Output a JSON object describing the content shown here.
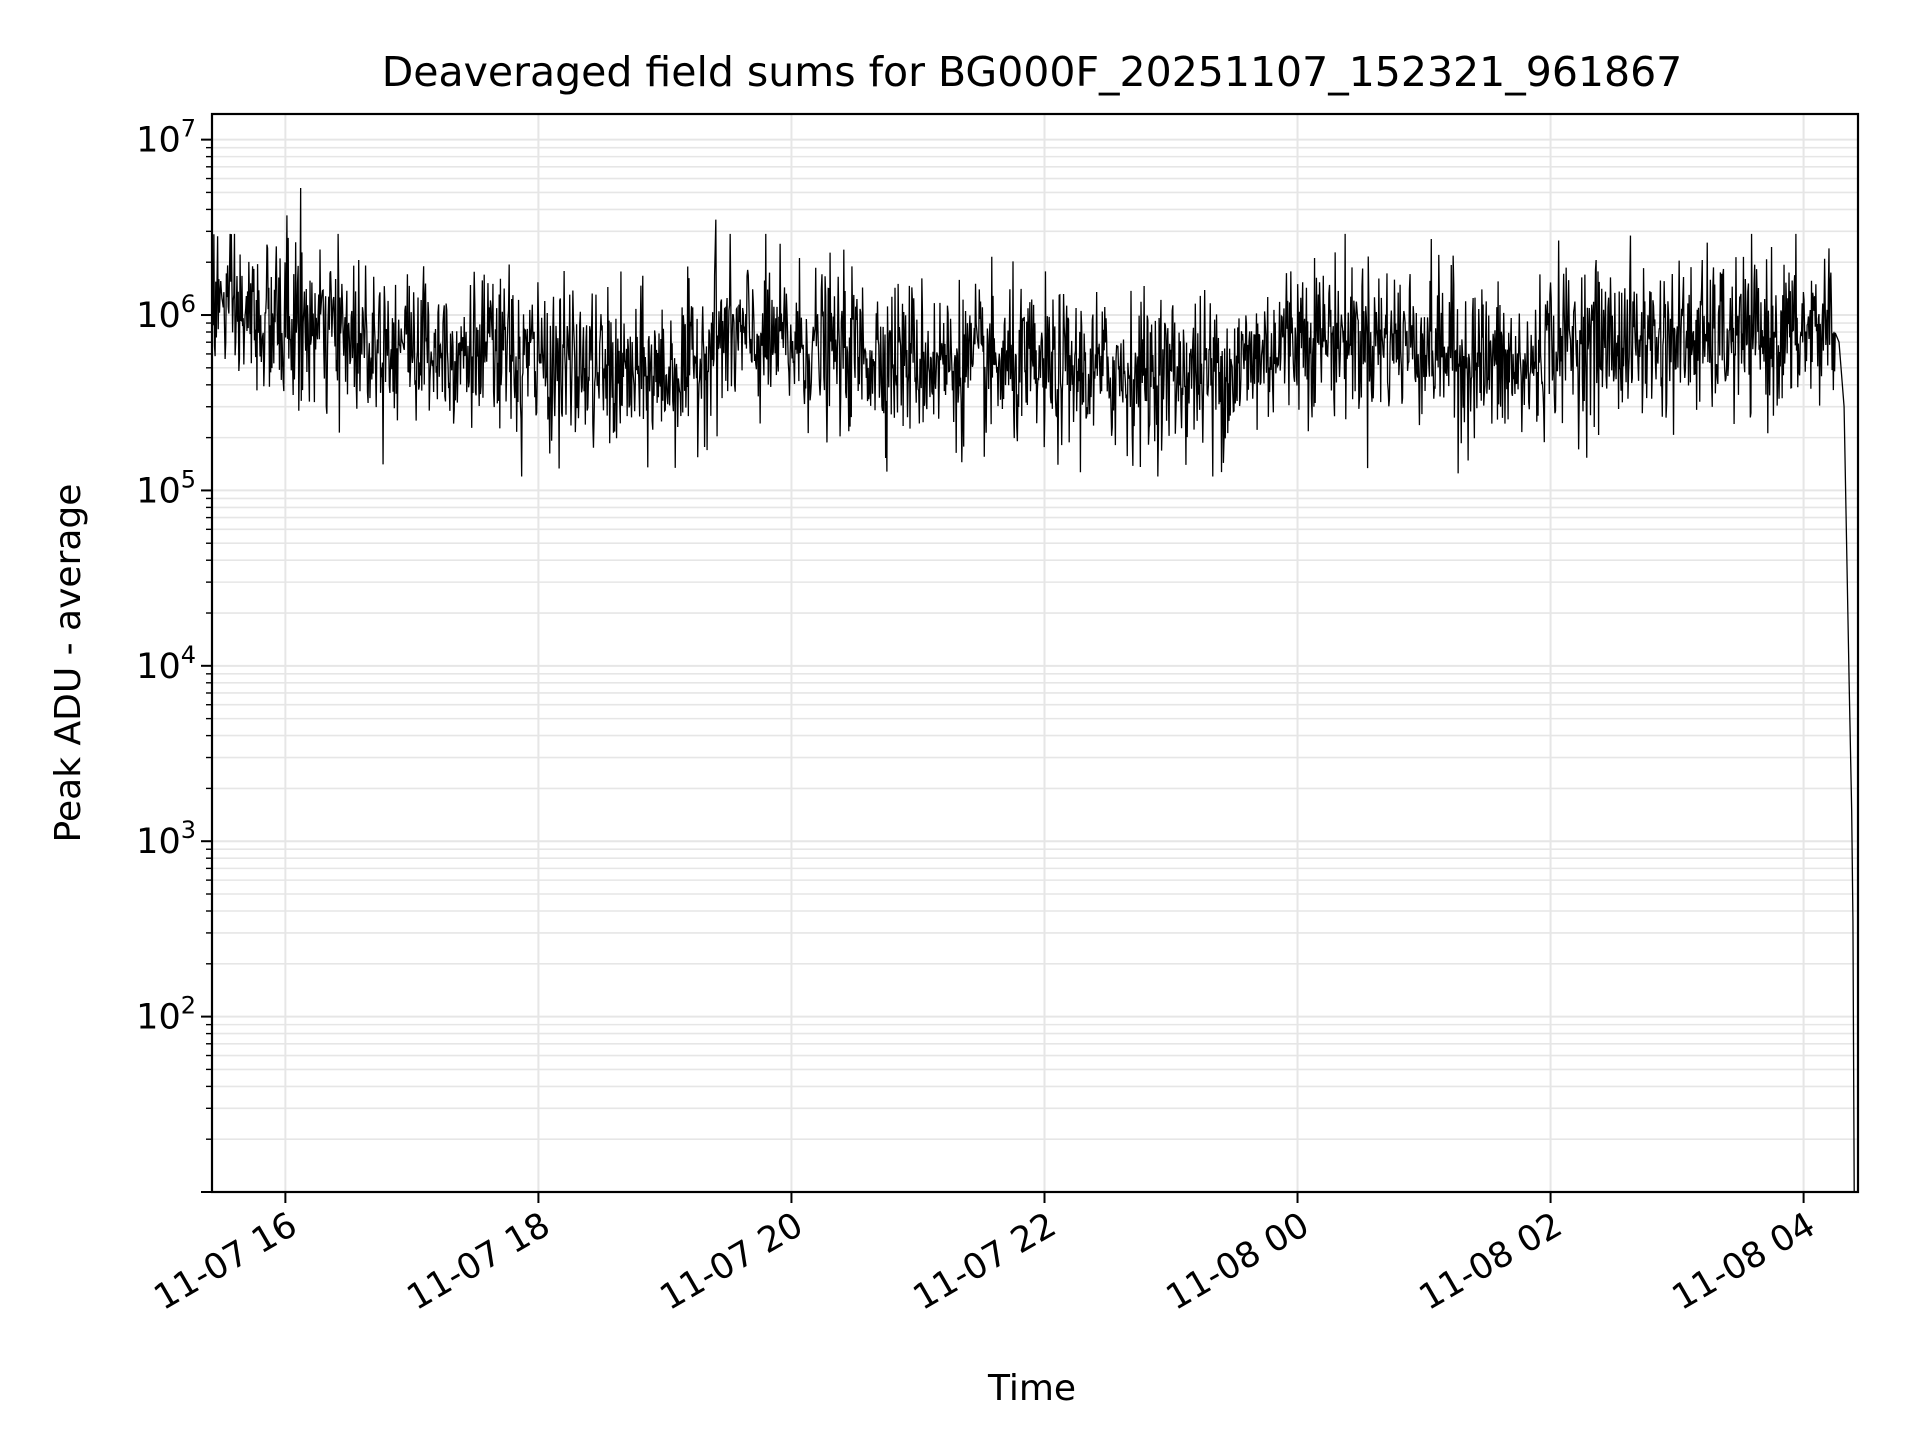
{
  "chart_data": {
    "type": "line",
    "title": "Deaveraged field sums for BG000F_20251107_152321_961867",
    "xlabel": "Time",
    "ylabel": "Peak ADU - average",
    "yscale": "log",
    "ylim": [
      10,
      14000000
    ],
    "xlim_hours": [
      15.42,
      28.43
    ],
    "grid": true,
    "line_color": "#000000",
    "xticks": [
      {
        "hour": 16,
        "label": "11-07 16"
      },
      {
        "hour": 18,
        "label": "11-07 18"
      },
      {
        "hour": 20,
        "label": "11-07 20"
      },
      {
        "hour": 22,
        "label": "11-07 22"
      },
      {
        "hour": 24,
        "label": "11-08 00"
      },
      {
        "hour": 26,
        "label": "11-08 02"
      },
      {
        "hour": 28,
        "label": "11-08 04"
      }
    ],
    "yticks": [
      {
        "value": 100,
        "base": "10",
        "exp": "2"
      },
      {
        "value": 1000,
        "base": "10",
        "exp": "3"
      },
      {
        "value": 10000,
        "base": "10",
        "exp": "4"
      },
      {
        "value": 100000,
        "base": "10",
        "exp": "5"
      },
      {
        "value": 1000000,
        "base": "10",
        "exp": "6"
      },
      {
        "value": 10000000,
        "base": "10",
        "exp": "7"
      }
    ],
    "series": [
      {
        "name": "Deaveraged field sum",
        "baseline_hours": [
          15.42,
          15.6,
          16.0,
          17.0,
          18.0,
          18.7,
          19.2,
          19.4,
          20.0,
          21.0,
          22.0,
          23.0,
          23.5,
          24.0,
          25.0,
          25.8,
          26.0,
          27.0,
          28.0,
          28.25
        ],
        "baseline_values": [
          1300000,
          1000000,
          850000,
          700000,
          560000,
          440000,
          480000,
          750000,
          680000,
          560000,
          470000,
          470000,
          480000,
          800000,
          700000,
          460000,
          700000,
          720000,
          780000,
          900000
        ],
        "noise_log10_sd": 0.22,
        "spikes": [
          {
            "hour": 16.12,
            "value": 5300000
          },
          {
            "hour": 19.4,
            "value": 3500000
          },
          {
            "hour": 16.01,
            "value": 3700000
          },
          {
            "hour": 17.87,
            "value": 120000
          },
          {
            "hour": 23.33,
            "value": 120000
          },
          {
            "hour": 25.27,
            "value": 125000
          },
          {
            "hour": 28.2,
            "value": 2400000
          }
        ],
        "tail": [
          {
            "hour": 28.28,
            "value": 700000
          },
          {
            "hour": 28.32,
            "value": 300000
          },
          {
            "hour": 28.36,
            "value": 8000
          },
          {
            "hour": 28.38,
            "value": 1500
          },
          {
            "hour": 28.39,
            "value": 350
          },
          {
            "hour": 28.4,
            "value": 10
          }
        ]
      }
    ]
  }
}
